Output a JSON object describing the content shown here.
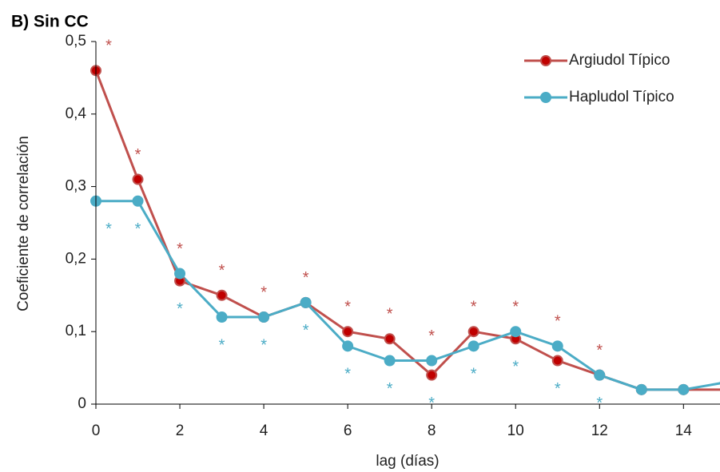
{
  "chart_data": {
    "type": "line",
    "title": "B) Sin CC",
    "x_label": "lag (días)",
    "y_label": "Coeficiente de correlación",
    "x": [
      0,
      1,
      2,
      3,
      4,
      5,
      6,
      7,
      8,
      9,
      10,
      11,
      12,
      13,
      14,
      15
    ],
    "xlim": [
      0,
      14.87
    ],
    "xticks": [
      0,
      2,
      4,
      6,
      8,
      10,
      12,
      14
    ],
    "ylim": [
      0,
      0.5
    ],
    "yticks": [
      0,
      {
        "value": 0.1,
        "label": "0,1"
      },
      {
        "value": 0.2,
        "label": "0,2"
      },
      {
        "value": 0.3,
        "label": "0,3"
      },
      {
        "value": 0.4,
        "label": "0,4"
      },
      {
        "value": 0.5,
        "label": "0,5"
      }
    ],
    "significance_label": "*",
    "legend": "upper right",
    "series": [
      {
        "name": "Argiudol Típico",
        "color": "#c0504d",
        "marker_color": "#c00000",
        "values": [
          0.46,
          0.31,
          0.17,
          0.15,
          0.12,
          0.14,
          0.1,
          0.09,
          0.04,
          0.1,
          0.09,
          0.06,
          0.04,
          0.02,
          0.02,
          0.02
        ],
        "significant": [
          true,
          true,
          true,
          true,
          true,
          true,
          true,
          true,
          true,
          true,
          true,
          true,
          true,
          false,
          false,
          false
        ]
      },
      {
        "name": "Hapludol Típico",
        "color": "#4bacc6",
        "marker_color": "#4bacc6",
        "values": [
          0.28,
          0.28,
          0.18,
          0.12,
          0.12,
          0.14,
          0.08,
          0.06,
          0.06,
          0.08,
          0.1,
          0.08,
          0.04,
          0.02,
          0.02,
          0.03
        ],
        "significant": [
          true,
          true,
          true,
          true,
          true,
          true,
          true,
          true,
          true,
          true,
          true,
          true,
          true,
          false,
          false,
          false
        ]
      }
    ]
  }
}
